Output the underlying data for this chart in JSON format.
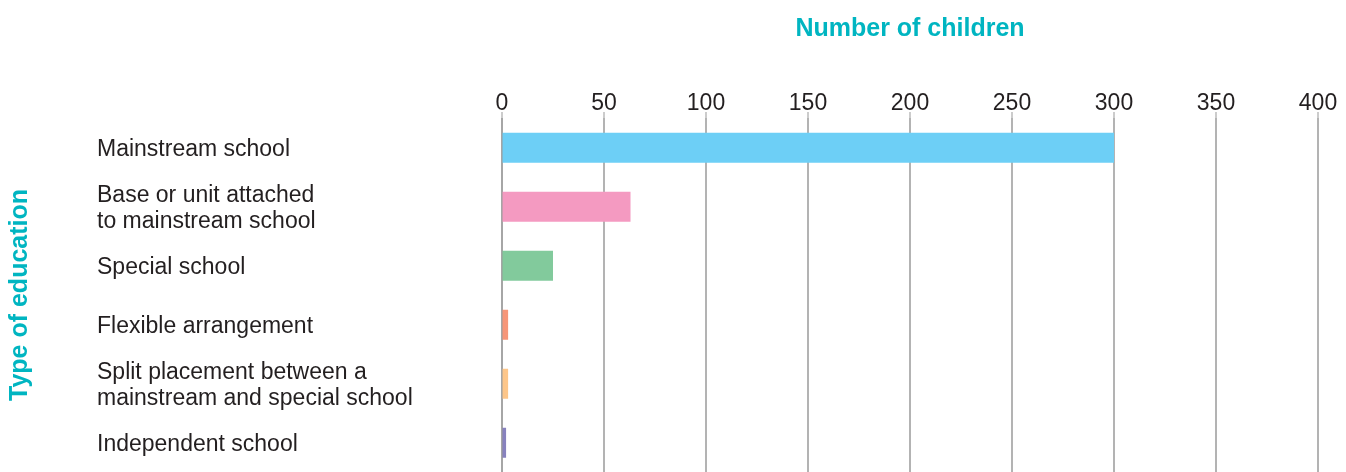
{
  "chart_data": {
    "type": "bar",
    "orientation": "horizontal",
    "xlabel": "Number of children",
    "ylabel": "Type of education",
    "categories": [
      "Mainstream school",
      "Base or unit attached\nto mainstream school",
      "Special school",
      "Flexible arrangement",
      "Split placement between a\nmainstream and special school",
      "Independent school"
    ],
    "values": [
      300,
      63,
      25,
      3,
      3,
      2
    ],
    "colors": [
      "#6dcff6",
      "#f49ac1",
      "#82ca9c",
      "#f69679",
      "#fdc68a",
      "#8882be"
    ],
    "xlim": [
      0,
      400
    ],
    "xticks": [
      0,
      50,
      100,
      150,
      200,
      250,
      300,
      350,
      400
    ],
    "grid": "x"
  }
}
